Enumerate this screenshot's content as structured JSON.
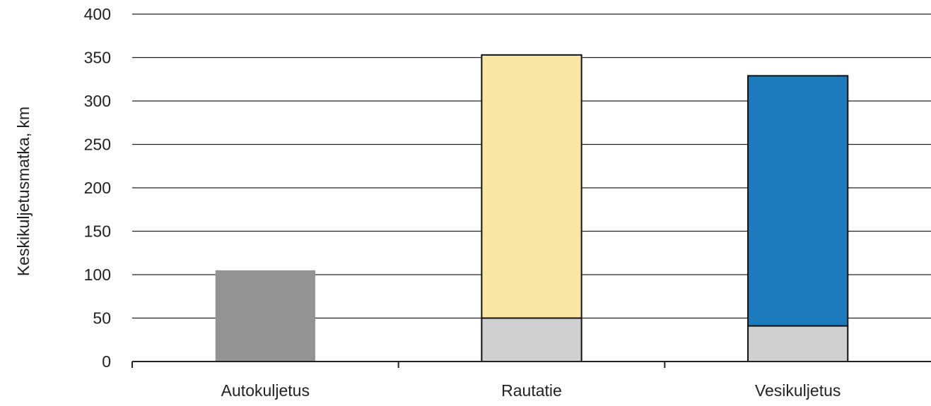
{
  "chart_data": {
    "type": "bar",
    "stacked": true,
    "categories": [
      "Autokuljetus",
      "Rautatie",
      "Vesikuljetus"
    ],
    "series": [
      {
        "color": "#d0d0d2",
        "values": [
          0,
          50,
          41
        ]
      },
      {
        "color": "#f9e6a5",
        "values": [
          0,
          303,
          0
        ]
      },
      {
        "color": "#1c7bbd",
        "values": [
          0,
          0,
          288
        ]
      },
      {
        "color": "#939395",
        "values": [
          105,
          0,
          0
        ]
      }
    ],
    "title": "",
    "xlabel": "",
    "ylabel": "Keskikuljetusmatka, km",
    "ylim": [
      0,
      400
    ],
    "yticks": [
      "0",
      "50",
      "100",
      "150",
      "200",
      "250",
      "300",
      "350",
      "400"
    ],
    "grid": true,
    "legend": "none"
  }
}
